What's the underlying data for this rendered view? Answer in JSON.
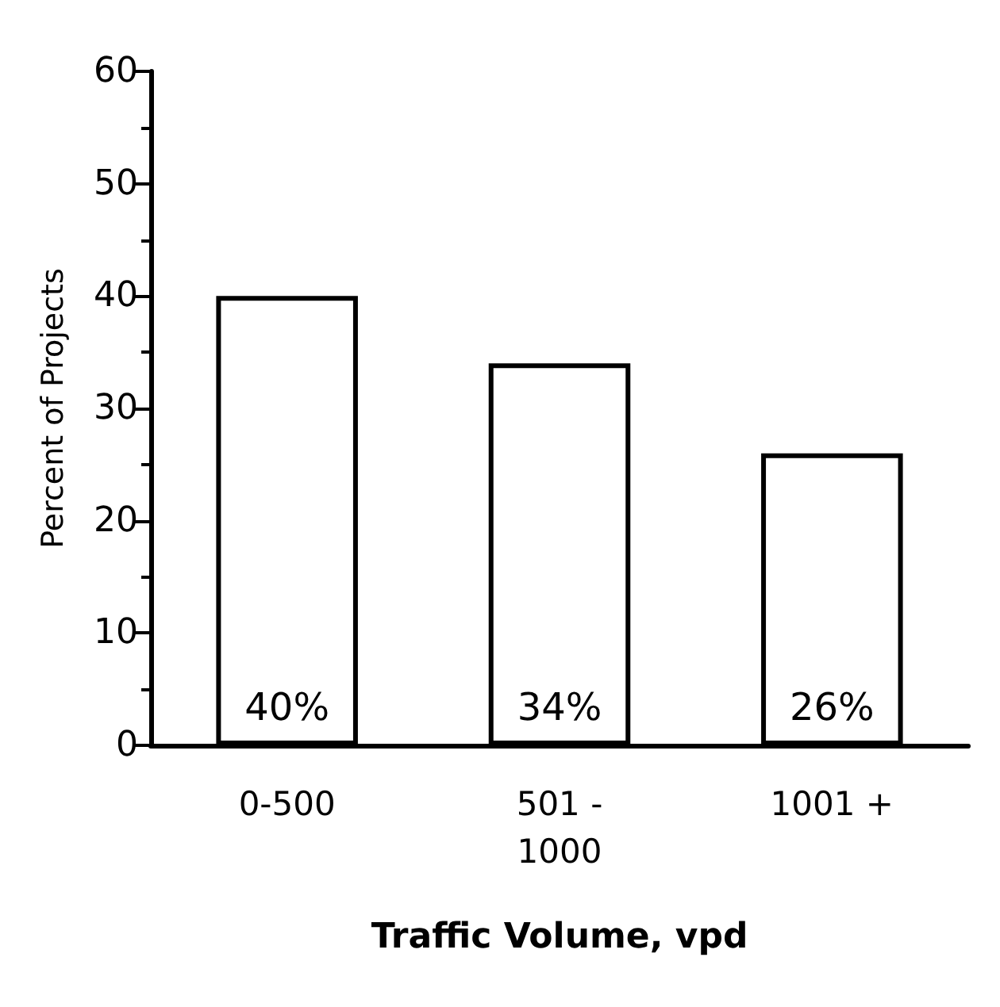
{
  "chart_data": {
    "type": "bar",
    "xlabel": "Traffic Volume, vpd",
    "ylabel": "Percent of Projects",
    "categories": [
      "0-500",
      "501 -\n1000",
      "1001 +"
    ],
    "values": [
      40,
      34,
      26
    ],
    "value_labels": [
      "40%",
      "34%",
      "26%"
    ],
    "color": "#ffffff",
    "ylim": [
      0,
      60
    ],
    "yticks": [
      0,
      10,
      20,
      30,
      40,
      50,
      60
    ],
    "grid": false
  }
}
